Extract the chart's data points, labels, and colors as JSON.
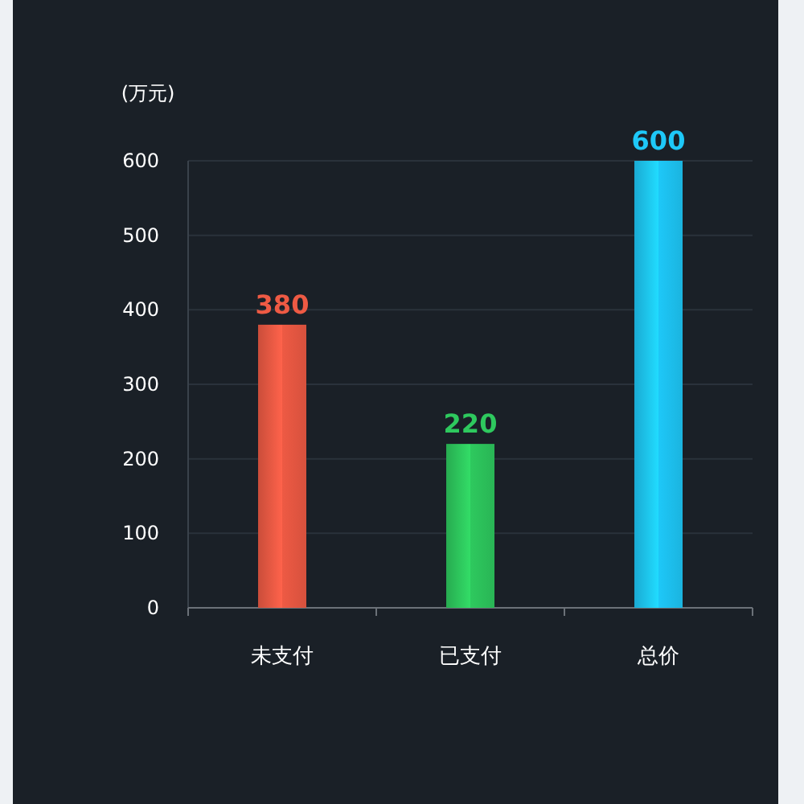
{
  "chart_data": {
    "type": "bar",
    "ylabel": "(万元)",
    "categories": [
      "未支付",
      "已支付",
      "总价"
    ],
    "values": [
      380,
      220,
      600
    ],
    "colors": [
      "#ee5a44",
      "#2ec95e",
      "#1ec8f8"
    ],
    "ylim": [
      0,
      600
    ],
    "yticks": [
      0,
      100,
      200,
      300,
      400,
      500,
      600
    ],
    "grid": "y",
    "data_labels": true
  }
}
